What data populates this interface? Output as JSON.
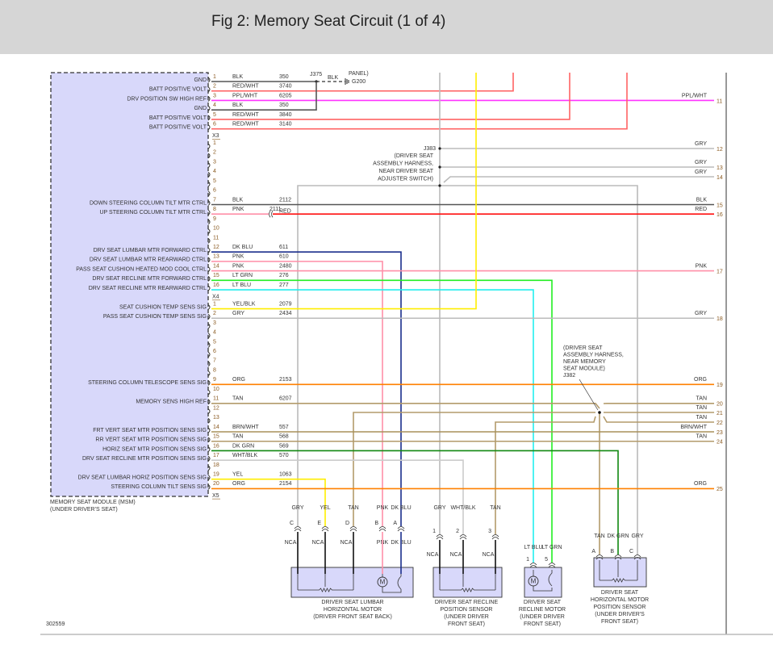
{
  "header": {
    "title": "Fig 2: Memory Seat Circuit (1 of 4)"
  },
  "figure_number": "302559",
  "wire_colors": {
    "BLK": "#555555",
    "RED/WHT": "#ff6464",
    "PPL/WHT": "#ff33ff",
    "RED": "#ff1111",
    "PNK": "#ff8fa8",
    "DK BLU": "#1a2e8c",
    "LT GRN": "#22ee22",
    "LT BLU": "#22eeee",
    "YEL/BLK": "#ffee00",
    "YEL": "#ffee00",
    "GRY": "#bbbbbb",
    "ORG": "#ff8000",
    "TAN": "#b39b6b",
    "BRN/WHT": "#a8905a",
    "DK GRN": "#118811",
    "WHT/BLK": "#cccccc"
  },
  "module": {
    "name": "MEMORY SEAT MODULE (MSM)",
    "location": "(UNDER DRIVER'S SEAT)",
    "rows": [
      {
        "pin": "1",
        "signal": "GND",
        "color": "BLK",
        "circuit": "350"
      },
      {
        "pin": "2",
        "signal": "BATT POSITIVE VOLT",
        "color": "RED/WHT",
        "circuit": "3740"
      },
      {
        "pin": "3",
        "signal": "DRV POSITION SW HIGH REF",
        "color": "PPL/WHT",
        "circuit": "6205"
      },
      {
        "pin": "4",
        "signal": "GND",
        "color": "BLK",
        "circuit": "350"
      },
      {
        "pin": "5",
        "signal": "BATT POSITIVE VOLT",
        "color": "RED/WHT",
        "circuit": "3840"
      },
      {
        "pin": "6",
        "signal": "BATT POSITIVE VOLT",
        "color": "RED/WHT",
        "circuit": "3140"
      },
      {
        "connector": "X3"
      },
      {
        "pin": "1"
      },
      {
        "pin": "2"
      },
      {
        "pin": "3"
      },
      {
        "pin": "4"
      },
      {
        "pin": "5"
      },
      {
        "pin": "6"
      },
      {
        "pin": "7",
        "signal": "DOWN STEERING COLUMN TILT MTR CTRL",
        "color": "BLK",
        "circuit": "2112"
      },
      {
        "pin": "8",
        "signal": "UP STEERING COLUMN TILT MTR CTRL",
        "color": "PNK",
        "circuit": "2111",
        "color_after_connector": "RED"
      },
      {
        "pin": "9"
      },
      {
        "pin": "10"
      },
      {
        "pin": "11"
      },
      {
        "pin": "12",
        "signal": "DRV SEAT LUMBAR MTR FORWARD CTRL",
        "color": "DK BLU",
        "circuit": "611"
      },
      {
        "pin": "13",
        "signal": "DRV SEAT LUMBAR MTR REARWARD CTRL",
        "color": "PNK",
        "circuit": "610"
      },
      {
        "pin": "14",
        "signal": "PASS SEAT CUSHION HEATED MOD COOL CTRL",
        "color": "PNK",
        "circuit": "2480"
      },
      {
        "pin": "15",
        "signal": "DRV SEAT RECLINE MTR FORWARD CTRL",
        "color": "LT GRN",
        "circuit": "276"
      },
      {
        "pin": "16",
        "signal": "DRV SEAT RECLINE MTR REARWARD CTRL",
        "color": "LT BLU",
        "circuit": "277"
      },
      {
        "connector": "X4"
      },
      {
        "pin": "1",
        "signal": "SEAT CUSHION TEMP SENS SIG",
        "color": "YEL/BLK",
        "circuit": "2079"
      },
      {
        "pin": "2",
        "signal": "PASS SEAT CUSHION TEMP SENS SIG",
        "color": "GRY",
        "circuit": "2434"
      },
      {
        "pin": "3"
      },
      {
        "pin": "4"
      },
      {
        "pin": "5"
      },
      {
        "pin": "6"
      },
      {
        "pin": "7"
      },
      {
        "pin": "8"
      },
      {
        "pin": "9",
        "signal": "STEERING COLUMN TELESCOPE SENS SIG",
        "color": "ORG",
        "circuit": "2153"
      },
      {
        "pin": "10"
      },
      {
        "pin": "11",
        "signal": "MEMORY SENS HIGH REF",
        "color": "TAN",
        "circuit": "6207"
      },
      {
        "pin": "12"
      },
      {
        "pin": "13"
      },
      {
        "pin": "14",
        "signal": "FRT VERT SEAT MTR POSITION SENS SIG",
        "color": "BRN/WHT",
        "circuit": "557"
      },
      {
        "pin": "15",
        "signal": "RR VERT SEAT MTR POSITION SENS SIG",
        "color": "TAN",
        "circuit": "568"
      },
      {
        "pin": "16",
        "signal": "HORIZ SEAT MTR POSITION SENS SIG",
        "color": "DK GRN",
        "circuit": "569"
      },
      {
        "pin": "17",
        "signal": "DRV SEAT RECLINE MTR POSITION SENS SIG",
        "color": "WHT/BLK",
        "circuit": "570"
      },
      {
        "pin": "18"
      },
      {
        "pin": "19",
        "signal": "DRV SEAT LUMBAR HORIZ POSITION SENS SIG",
        "color": "YEL",
        "circuit": "1063"
      },
      {
        "pin": "20",
        "signal": "STEERING COLUMN TILT SENS SIG",
        "color": "ORG",
        "circuit": "2154"
      },
      {
        "connector": "X5"
      }
    ]
  },
  "splices": {
    "j375": {
      "label": "J375",
      "wire": "BLK",
      "ground": "G200",
      "note": "PANEL)"
    },
    "j383": {
      "label": "J383",
      "lines": [
        "(DRIVER SEAT",
        "ASSEMBLY HARNESS,",
        "NEAR DRIVER SEAT",
        "ADJUSTER SWITCH)"
      ]
    },
    "j382": {
      "label": "J382",
      "lines": [
        "(DRIVER SEAT",
        "ASSEMBLY HARNESS,",
        "NEAR MEMORY",
        "SEAT MODULE)"
      ]
    }
  },
  "off_page": [
    {
      "num": "11",
      "color": "PPL/WHT"
    },
    {
      "num": "12",
      "color": "GRY"
    },
    {
      "num": "13",
      "color": "GRY"
    },
    {
      "num": "14",
      "color": "GRY"
    },
    {
      "num": "15",
      "color": "BLK"
    },
    {
      "num": "16",
      "color": "RED"
    },
    {
      "num": "17",
      "color": "PNK"
    },
    {
      "num": "18",
      "color": "GRY"
    },
    {
      "num": "19",
      "color": "ORG"
    },
    {
      "num": "20",
      "color": "TAN"
    },
    {
      "num": "21",
      "color": "TAN"
    },
    {
      "num": "22",
      "color": "TAN"
    },
    {
      "num": "23",
      "color": "BRN/WHT"
    },
    {
      "num": "24",
      "color": "TAN"
    },
    {
      "num": "25",
      "color": "ORG"
    }
  ],
  "components": [
    {
      "name": [
        "DRIVER SEAT LUMBAR",
        "HORIZONTAL MOTOR",
        "(DRIVER FRONT SEAT BACK)"
      ],
      "pins": [
        {
          "pin": "C",
          "color": "GRY",
          "side": "NCA"
        },
        {
          "pin": "E",
          "color": "YEL",
          "side": "NCA"
        },
        {
          "pin": "D",
          "color": "TAN",
          "side": "NCA"
        },
        {
          "pin": "B",
          "color": "PNK",
          "side": "PNK"
        },
        {
          "pin": "A",
          "color": "DK BLU",
          "side": "DK BLU"
        }
      ],
      "motor": "M"
    },
    {
      "name": [
        "DRIVER SEAT RECLINE",
        "POSITION SENSOR",
        "(UNDER DRIVER",
        "FRONT SEAT)"
      ],
      "pins": [
        {
          "pin": "1",
          "color": "GRY",
          "side": "NCA"
        },
        {
          "pin": "2",
          "color": "WHT/BLK",
          "side": "NCA"
        },
        {
          "pin": "3",
          "color": "TAN",
          "side": "NCA"
        }
      ]
    },
    {
      "name": [
        "DRIVER SEAT",
        "RECLINE MOTOR",
        "(UNDER DRIVER",
        "FRONT SEAT)"
      ],
      "pins": [
        {
          "pin": "1",
          "color": "LT BLU"
        },
        {
          "pin": "5",
          "color": "LT GRN"
        }
      ],
      "motor": "M"
    },
    {
      "name": [
        "DRIVER SEAT",
        "HORIZONTAL MOTOR",
        "POSITION SENSOR",
        "(UNDER DRIVER'S",
        "FRONT SEAT)"
      ],
      "pins": [
        {
          "pin": "A",
          "color": "TAN"
        },
        {
          "pin": "B",
          "color": "DK GRN"
        },
        {
          "pin": "C",
          "color": "GRY"
        }
      ]
    }
  ]
}
